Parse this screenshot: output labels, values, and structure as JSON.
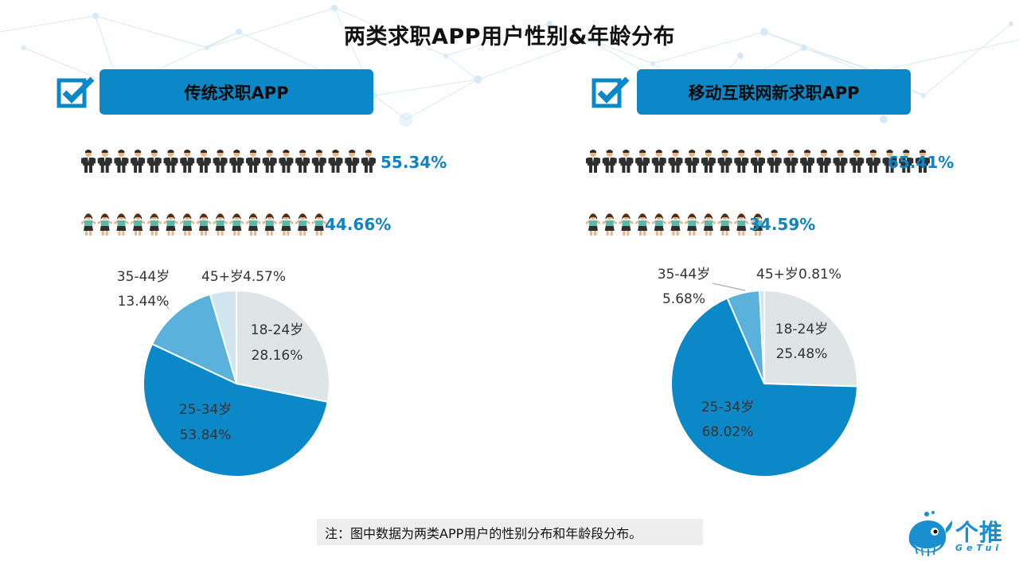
{
  "title": "两类求职APP用户性别&年龄分布",
  "panels": [
    {
      "heading": "传统求职APP",
      "male_pct": "55.34%",
      "female_pct": "44.66%"
    },
    {
      "heading": "移动互联网新求职APP",
      "male_pct": "65.41%",
      "female_pct": "34.59%"
    }
  ],
  "chart_data": [
    {
      "type": "pie",
      "title": "传统求职APP",
      "slices": [
        {
          "label": "18-24岁",
          "value": 28.16,
          "text": "28.16%",
          "color": "#dfe4e7"
        },
        {
          "label": "25-34岁",
          "value": 53.84,
          "text": "53.84%",
          "color": "#0b88c8"
        },
        {
          "label": "35-44岁",
          "value": 13.44,
          "text": "13.44%",
          "color": "#5ab2dc"
        },
        {
          "label": "45+岁",
          "value": 4.57,
          "text": "4.57%",
          "color": "#cfe6f1"
        }
      ]
    },
    {
      "type": "pie",
      "title": "移动互联网新求职APP",
      "slices": [
        {
          "label": "18-24岁",
          "value": 25.48,
          "text": "25.48%",
          "color": "#dfe4e7"
        },
        {
          "label": "25-34岁",
          "value": 68.02,
          "text": "68.02%",
          "color": "#0b88c8"
        },
        {
          "label": "35-44岁",
          "value": 5.68,
          "text": "5.68%",
          "color": "#5ab2dc"
        },
        {
          "label": "45+岁",
          "value": 0.81,
          "text": "0.81%",
          "color": "#cfe6f1"
        }
      ]
    }
  ],
  "footnote": "注：图中数据为两类APP用户的性别分布和年龄段分布。",
  "logo": {
    "name": "个推",
    "sub": "GeTui"
  },
  "colors": {
    "accent": "#0b88c8",
    "percent_text": "#1183c0",
    "male_suit": "#333333",
    "female_shirt": "#5cb8a8"
  },
  "icons": [
    "checkbox-icon",
    "male-person-icon",
    "female-person-icon",
    "getui-whale-logo-icon"
  ]
}
